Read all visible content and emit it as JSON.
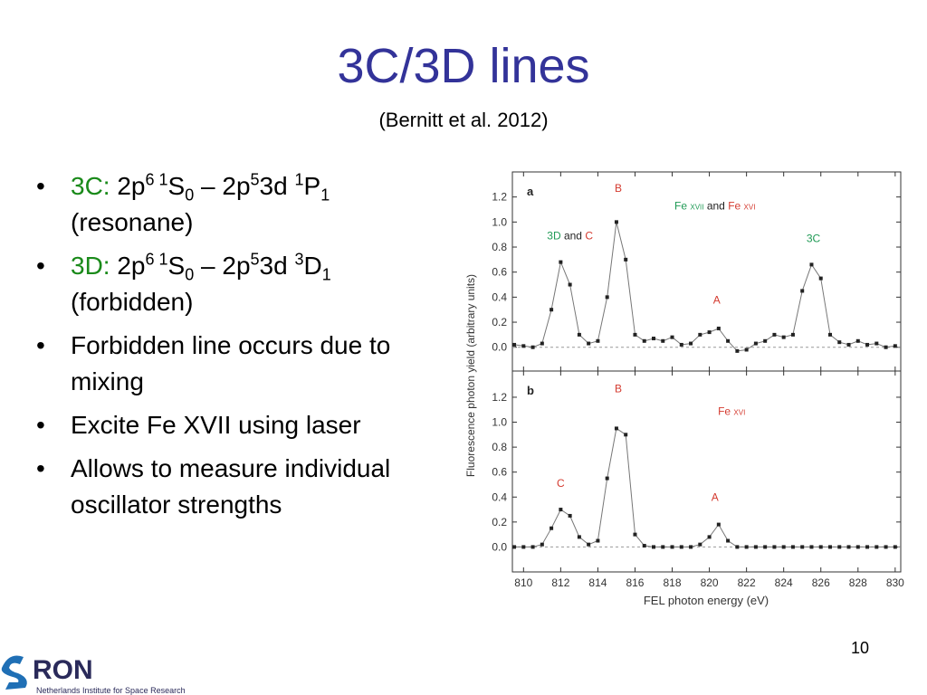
{
  "header": {
    "title": "3C/3D lines",
    "subtitle": "(Bernitt et al. 2012)"
  },
  "bullets": [
    {
      "accent_color": "#1a8a1a",
      "parts": [
        {
          "text": "3C:",
          "style": "accent"
        },
        {
          "text": " 2p",
          "style": "normal"
        },
        {
          "text": "6 1",
          "style": "sup"
        },
        {
          "text": "S",
          "style": "normal"
        },
        {
          "text": "0",
          "style": "sub"
        },
        {
          "text": " – 2p",
          "style": "normal"
        },
        {
          "text": "5",
          "style": "sup"
        },
        {
          "text": "3d ",
          "style": "normal"
        },
        {
          "text": "1",
          "style": "sup"
        },
        {
          "text": "P",
          "style": "normal"
        },
        {
          "text": "1",
          "style": "sub"
        },
        {
          "text": " (resonane)",
          "style": "normal"
        }
      ]
    },
    {
      "accent_color": "#1a8a1a",
      "parts": [
        {
          "text": "3D:",
          "style": "accent"
        },
        {
          "text": " 2p",
          "style": "normal"
        },
        {
          "text": "6 1",
          "style": "sup"
        },
        {
          "text": "S",
          "style": "normal"
        },
        {
          "text": "0",
          "style": "sub"
        },
        {
          "text": " – 2p",
          "style": "normal"
        },
        {
          "text": "5",
          "style": "sup"
        },
        {
          "text": "3d ",
          "style": "normal"
        },
        {
          "text": "3",
          "style": "sup"
        },
        {
          "text": "D",
          "style": "normal"
        },
        {
          "text": "1",
          "style": "sub"
        },
        {
          "text": " (forbidden)",
          "style": "normal"
        }
      ]
    },
    {
      "parts": [
        {
          "text": "Forbidden line occurs due to mixing",
          "style": "normal"
        }
      ]
    },
    {
      "parts": [
        {
          "text": "Excite Fe XVII using laser",
          "style": "normal"
        }
      ]
    },
    {
      "parts": [
        {
          "text": "Allows to measure individual oscillator strengths",
          "style": "normal"
        }
      ]
    }
  ],
  "figure": {
    "ylabel": "Fluorescence photon yield (arbitrary units)",
    "xlabel": "FEL photon energy (eV)"
  },
  "chart_data": [
    {
      "type": "line",
      "panel_label": "a",
      "color": "#222222",
      "line_color": "#777777",
      "x": [
        809.5,
        810,
        810.5,
        811,
        811.5,
        812,
        812.5,
        813,
        813.5,
        814,
        814.5,
        815,
        815.5,
        816,
        816.5,
        817,
        817.5,
        818,
        818.5,
        819,
        819.5,
        820,
        820.5,
        821,
        821.5,
        822,
        822.5,
        823,
        823.5,
        824,
        824.5,
        825,
        825.5,
        826,
        826.5,
        827,
        827.5,
        828,
        828.5,
        829,
        829.5,
        830
      ],
      "values": [
        0.02,
        0.01,
        0.0,
        0.03,
        0.3,
        0.68,
        0.5,
        0.1,
        0.03,
        0.05,
        0.4,
        1.0,
        0.7,
        0.1,
        0.05,
        0.07,
        0.05,
        0.08,
        0.02,
        0.03,
        0.1,
        0.12,
        0.15,
        0.05,
        -0.03,
        -0.02,
        0.03,
        0.05,
        0.1,
        0.08,
        0.1,
        0.45,
        0.66,
        0.55,
        0.1,
        0.04,
        0.02,
        0.05,
        0.02,
        0.03,
        0.0,
        0.01
      ],
      "xlim": [
        809.4,
        830.3
      ],
      "ylim": [
        -0.19,
        1.4
      ],
      "xticks": [
        810,
        812,
        814,
        816,
        818,
        820,
        822,
        824,
        826,
        828,
        830
      ],
      "yticks": [
        {
          "value": 0,
          "label": "0.0"
        },
        {
          "value": 0.2,
          "label": "0.2"
        },
        {
          "value": 0.4,
          "label": "0.4"
        },
        {
          "value": 0.6,
          "label": "0.6"
        },
        {
          "value": 0.8,
          "label": "0.8"
        },
        {
          "value": 1,
          "label": "1.0"
        },
        {
          "value": 1.2,
          "label": "1.2"
        }
      ],
      "annotations": [
        {
          "x": 815.1,
          "y": 1.24,
          "parts": [
            {
              "text": "B",
              "color": "#d43a2f"
            }
          ]
        },
        {
          "x": 812.5,
          "y": 0.86,
          "parts": [
            {
              "text": "3D",
              "color": "#1f9a55"
            },
            {
              "text": " and ",
              "color": "#222222"
            },
            {
              "text": "C",
              "color": "#d43a2f"
            }
          ]
        },
        {
          "x": 820.4,
          "y": 0.35,
          "parts": [
            {
              "text": "A",
              "color": "#d43a2f"
            }
          ]
        },
        {
          "x": 825.6,
          "y": 0.84,
          "parts": [
            {
              "text": "3C",
              "color": "#1f9a55"
            }
          ]
        },
        {
          "x": 820.3,
          "y": 1.1,
          "parts": [
            {
              "text": "Fe ",
              "color": "#1f9a55"
            },
            {
              "text": "XVII",
              "color": "#1f9a55",
              "small": true
            },
            {
              "text": " and ",
              "color": "#222222"
            },
            {
              "text": "Fe ",
              "color": "#d43a2f"
            },
            {
              "text": "XVI",
              "color": "#d43a2f",
              "small": true
            }
          ]
        }
      ]
    },
    {
      "type": "line",
      "panel_label": "b",
      "color": "#222222",
      "line_color": "#777777",
      "x": [
        809.5,
        810,
        810.5,
        811,
        811.5,
        812,
        812.5,
        813,
        813.5,
        814,
        814.5,
        815,
        815.5,
        816,
        816.5,
        817,
        817.5,
        818,
        818.5,
        819,
        819.5,
        820,
        820.5,
        821,
        821.5,
        822,
        822.5,
        823,
        823.5,
        824,
        824.5,
        825,
        825.5,
        826,
        826.5,
        827,
        827.5,
        828,
        828.5,
        829,
        829.5,
        830
      ],
      "values": [
        0,
        0,
        0,
        0.02,
        0.15,
        0.3,
        0.25,
        0.08,
        0.02,
        0.05,
        0.55,
        0.95,
        0.9,
        0.1,
        0.01,
        0,
        0,
        0,
        0,
        0,
        0.02,
        0.08,
        0.18,
        0.05,
        0,
        0,
        0,
        0,
        0,
        0,
        0,
        0,
        0,
        0,
        0,
        0,
        0,
        0,
        0,
        0,
        0,
        0
      ],
      "xlim": [
        809.4,
        830.3
      ],
      "ylim": [
        -0.2,
        1.41
      ],
      "xticks": [
        810,
        812,
        814,
        816,
        818,
        820,
        822,
        824,
        826,
        828,
        830
      ],
      "yticks": [
        {
          "value": 0,
          "label": "0.0"
        },
        {
          "value": 0.2,
          "label": "0.2"
        },
        {
          "value": 0.4,
          "label": "0.4"
        },
        {
          "value": 0.6,
          "label": "0.6"
        },
        {
          "value": 0.8,
          "label": "0.8"
        },
        {
          "value": 1,
          "label": "1.0"
        },
        {
          "value": 1.2,
          "label": "1.2"
        }
      ],
      "x_tick_labels": true,
      "annotations": [
        {
          "x": 815.1,
          "y": 1.24,
          "parts": [
            {
              "text": "B",
              "color": "#d43a2f"
            }
          ]
        },
        {
          "x": 821.2,
          "y": 1.06,
          "parts": [
            {
              "text": "Fe ",
              "color": "#d43a2f"
            },
            {
              "text": "XVI",
              "color": "#d43a2f",
              "small": true
            }
          ]
        },
        {
          "x": 812.0,
          "y": 0.48,
          "parts": [
            {
              "text": "C",
              "color": "#d43a2f"
            }
          ]
        },
        {
          "x": 820.3,
          "y": 0.37,
          "parts": [
            {
              "text": "A",
              "color": "#d43a2f"
            }
          ]
        }
      ]
    }
  ],
  "footer": {
    "logo_s": "S",
    "logo_rest": "RON",
    "org": "Netherlands Institute for Space Research",
    "page": "10"
  }
}
